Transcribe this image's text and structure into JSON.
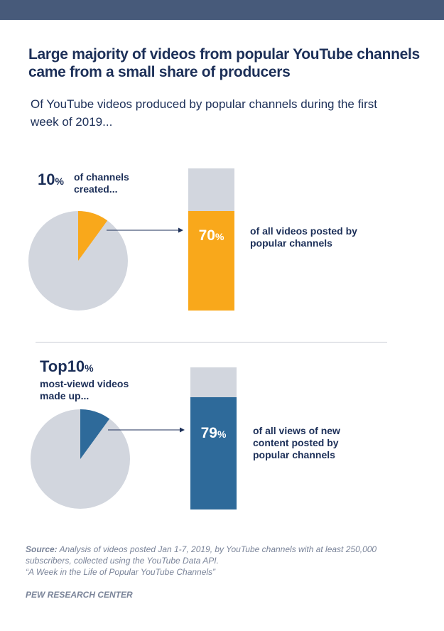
{
  "title": "Large majority of videos from popular YouTube channels came from a small share of producers",
  "subtitle": "Of YouTube videos produced by popular channels during the first week of 2019...",
  "colors": {
    "orange": "#f9a81b",
    "blue": "#2e6a9a",
    "gray": "#d2d6de",
    "navy": "#1c2f58"
  },
  "chart_data": [
    {
      "type": "pie",
      "slices": [
        {
          "name": "share of channels",
          "value": 10
        },
        {
          "name": "rest",
          "value": 90
        }
      ],
      "label_value": "10",
      "label_unit": "%",
      "label": "of channels created...",
      "bar": {
        "type": "bar",
        "value": 70,
        "unit": "%",
        "label": "of all videos posted by popular channels",
        "ylim": [
          0,
          100
        ]
      }
    },
    {
      "type": "pie",
      "slices": [
        {
          "name": "top videos",
          "value": 10
        },
        {
          "name": "rest",
          "value": 90
        }
      ],
      "label_prefix": "Top",
      "label_value": "10",
      "label_unit": "%",
      "label": "most-viewd videos made up...",
      "bar": {
        "type": "bar",
        "value": 79,
        "unit": "%",
        "label": "of all views of new content posted by popular channels",
        "ylim": [
          0,
          100
        ]
      }
    }
  ],
  "source_label": "Source:",
  "source_text": " Analysis of videos posted Jan 1-7, 2019, by YouTube channels with at least 250,000 subscribers, collected using the YouTube Data API.",
  "report": "“A Week in the Life of Popular YouTube Channels”",
  "org": "PEW RESEARCH CENTER"
}
